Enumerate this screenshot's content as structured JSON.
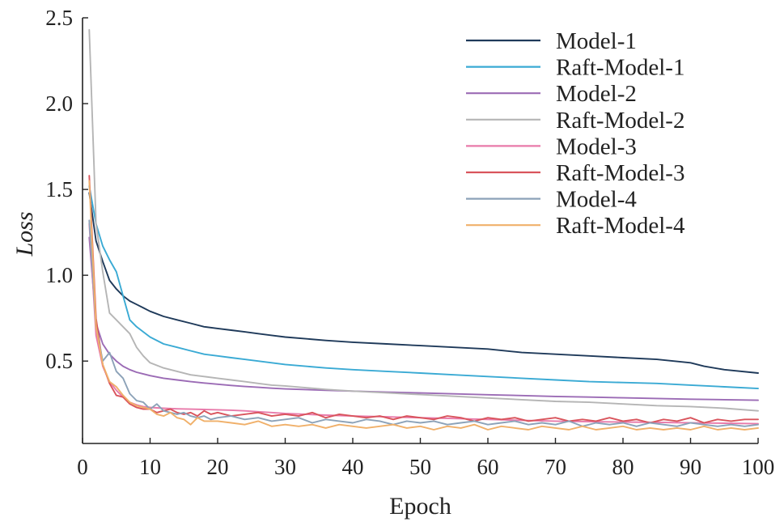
{
  "chart_data": {
    "type": "line",
    "title": "",
    "xlabel": "Epoch",
    "ylabel": "Loss",
    "xlim": [
      0,
      100
    ],
    "ylim": [
      0.02,
      2.5
    ],
    "x_ticks": [
      0,
      10,
      20,
      30,
      40,
      50,
      60,
      70,
      80,
      90,
      100
    ],
    "x_tick_labels": [
      "0",
      "10",
      "20",
      "30",
      "40",
      "50",
      "60",
      "70",
      "80",
      "90",
      "100"
    ],
    "y_ticks": [
      0.5,
      1.0,
      1.5,
      2.0,
      2.5
    ],
    "y_tick_labels": [
      "0.5",
      "1.0",
      "1.5",
      "2.0",
      "2.5"
    ],
    "grid": false,
    "legend_position": "top-right",
    "series": [
      {
        "name": "Model-1",
        "color": "#1f3a5a",
        "x": [
          1,
          2,
          3,
          4,
          5,
          6,
          7,
          8,
          9,
          10,
          12,
          14,
          16,
          18,
          20,
          22,
          24,
          26,
          28,
          30,
          33,
          36,
          40,
          45,
          50,
          55,
          60,
          65,
          70,
          75,
          80,
          85,
          90,
          92,
          95,
          100
        ],
        "y": [
          1.48,
          1.2,
          1.08,
          0.97,
          0.92,
          0.88,
          0.85,
          0.83,
          0.81,
          0.79,
          0.76,
          0.74,
          0.72,
          0.7,
          0.69,
          0.68,
          0.67,
          0.66,
          0.65,
          0.64,
          0.63,
          0.62,
          0.61,
          0.6,
          0.59,
          0.58,
          0.57,
          0.55,
          0.54,
          0.53,
          0.52,
          0.51,
          0.49,
          0.47,
          0.45,
          0.43
        ]
      },
      {
        "name": "Raft-Model-1",
        "color": "#3aaad4",
        "x": [
          1,
          2,
          3,
          4,
          5,
          6,
          7,
          8,
          9,
          10,
          12,
          14,
          16,
          18,
          20,
          22,
          24,
          26,
          28,
          30,
          33,
          36,
          40,
          45,
          50,
          55,
          60,
          65,
          70,
          75,
          80,
          85,
          90,
          95,
          100
        ],
        "y": [
          1.52,
          1.3,
          1.17,
          1.09,
          1.02,
          0.88,
          0.74,
          0.7,
          0.67,
          0.64,
          0.6,
          0.58,
          0.56,
          0.54,
          0.53,
          0.52,
          0.51,
          0.5,
          0.49,
          0.48,
          0.47,
          0.46,
          0.45,
          0.44,
          0.43,
          0.42,
          0.41,
          0.4,
          0.39,
          0.38,
          0.375,
          0.37,
          0.36,
          0.35,
          0.34
        ]
      },
      {
        "name": "Model-2",
        "color": "#9b6bb5",
        "x": [
          1,
          2,
          3,
          4,
          5,
          6,
          7,
          8,
          9,
          10,
          12,
          14,
          16,
          18,
          20,
          22,
          24,
          26,
          28,
          30,
          33,
          36,
          40,
          45,
          50,
          55,
          60,
          65,
          70,
          75,
          80,
          85,
          90,
          95,
          100
        ],
        "y": [
          1.22,
          0.72,
          0.6,
          0.54,
          0.5,
          0.47,
          0.45,
          0.435,
          0.425,
          0.415,
          0.4,
          0.39,
          0.38,
          0.372,
          0.365,
          0.358,
          0.352,
          0.347,
          0.342,
          0.338,
          0.334,
          0.33,
          0.325,
          0.319,
          0.314,
          0.309,
          0.304,
          0.299,
          0.294,
          0.29,
          0.286,
          0.282,
          0.278,
          0.275,
          0.272
        ]
      },
      {
        "name": "Raft-Model-2",
        "color": "#b5b5b5",
        "x": [
          1,
          2,
          3,
          4,
          5,
          6,
          7,
          8,
          9,
          10,
          12,
          14,
          16,
          18,
          20,
          22,
          24,
          26,
          28,
          30,
          33,
          36,
          40,
          45,
          50,
          55,
          60,
          65,
          70,
          75,
          80,
          85,
          90,
          95,
          100
        ],
        "y": [
          2.43,
          1.3,
          1.02,
          0.78,
          0.74,
          0.7,
          0.66,
          0.58,
          0.53,
          0.49,
          0.46,
          0.44,
          0.42,
          0.41,
          0.4,
          0.39,
          0.38,
          0.37,
          0.36,
          0.355,
          0.345,
          0.335,
          0.325,
          0.315,
          0.305,
          0.295,
          0.285,
          0.275,
          0.265,
          0.26,
          0.25,
          0.24,
          0.235,
          0.225,
          0.21
        ]
      },
      {
        "name": "Model-3",
        "color": "#e87aaa",
        "x": [
          1,
          2,
          3,
          4,
          5,
          6,
          7,
          8,
          9,
          10,
          12,
          14,
          16,
          18,
          20,
          22,
          24,
          26,
          28,
          30,
          33,
          36,
          40,
          45,
          50,
          55,
          60,
          65,
          70,
          75,
          80,
          85,
          90,
          95,
          100
        ],
        "y": [
          1.3,
          0.65,
          0.47,
          0.38,
          0.33,
          0.29,
          0.26,
          0.245,
          0.235,
          0.23,
          0.225,
          0.222,
          0.22,
          0.218,
          0.216,
          0.214,
          0.21,
          0.205,
          0.2,
          0.195,
          0.19,
          0.185,
          0.18,
          0.175,
          0.17,
          0.165,
          0.16,
          0.155,
          0.15,
          0.147,
          0.145,
          0.143,
          0.14,
          0.138,
          0.135
        ]
      },
      {
        "name": "Raft-Model-3",
        "color": "#d9545c",
        "x": [
          1,
          2,
          3,
          4,
          5,
          6,
          7,
          8,
          9,
          10,
          11,
          12,
          13,
          14,
          15,
          16,
          17,
          18,
          19,
          20,
          22,
          24,
          26,
          28,
          30,
          32,
          34,
          36,
          38,
          40,
          42,
          44,
          46,
          48,
          50,
          52,
          54,
          56,
          58,
          60,
          62,
          64,
          66,
          68,
          70,
          72,
          74,
          76,
          78,
          80,
          82,
          84,
          86,
          88,
          90,
          92,
          94,
          96,
          98,
          100
        ],
        "y": [
          1.58,
          0.75,
          0.48,
          0.37,
          0.3,
          0.29,
          0.25,
          0.23,
          0.22,
          0.22,
          0.2,
          0.21,
          0.22,
          0.2,
          0.19,
          0.2,
          0.18,
          0.21,
          0.19,
          0.2,
          0.18,
          0.19,
          0.2,
          0.18,
          0.19,
          0.18,
          0.2,
          0.17,
          0.19,
          0.18,
          0.17,
          0.18,
          0.16,
          0.18,
          0.17,
          0.16,
          0.18,
          0.17,
          0.15,
          0.17,
          0.16,
          0.17,
          0.15,
          0.16,
          0.17,
          0.15,
          0.16,
          0.15,
          0.17,
          0.15,
          0.16,
          0.14,
          0.16,
          0.15,
          0.17,
          0.14,
          0.16,
          0.15,
          0.16,
          0.16
        ]
      },
      {
        "name": "Model-4",
        "color": "#8ca2b8",
        "x": [
          1,
          2,
          3,
          4,
          5,
          6,
          7,
          8,
          9,
          10,
          11,
          12,
          13,
          14,
          15,
          16,
          17,
          18,
          19,
          20,
          22,
          24,
          26,
          28,
          30,
          32,
          34,
          36,
          38,
          40,
          42,
          44,
          46,
          48,
          50,
          52,
          54,
          56,
          58,
          60,
          62,
          64,
          66,
          68,
          70,
          72,
          74,
          76,
          78,
          80,
          82,
          84,
          86,
          88,
          90,
          92,
          94,
          96,
          98,
          100
        ],
        "y": [
          1.32,
          0.7,
          0.5,
          0.55,
          0.44,
          0.4,
          0.31,
          0.27,
          0.26,
          0.22,
          0.25,
          0.21,
          0.2,
          0.19,
          0.2,
          0.18,
          0.17,
          0.18,
          0.16,
          0.17,
          0.18,
          0.16,
          0.17,
          0.15,
          0.16,
          0.17,
          0.14,
          0.16,
          0.15,
          0.14,
          0.16,
          0.15,
          0.13,
          0.15,
          0.14,
          0.15,
          0.13,
          0.14,
          0.15,
          0.13,
          0.14,
          0.15,
          0.13,
          0.14,
          0.13,
          0.15,
          0.12,
          0.14,
          0.13,
          0.14,
          0.12,
          0.14,
          0.13,
          0.12,
          0.14,
          0.13,
          0.12,
          0.13,
          0.12,
          0.13
        ]
      },
      {
        "name": "Raft-Model-4",
        "color": "#f0b06a",
        "x": [
          1,
          2,
          3,
          4,
          5,
          6,
          7,
          8,
          9,
          10,
          11,
          12,
          13,
          14,
          15,
          16,
          17,
          18,
          19,
          20,
          22,
          24,
          26,
          28,
          30,
          32,
          34,
          36,
          38,
          40,
          42,
          44,
          46,
          48,
          50,
          52,
          54,
          56,
          58,
          60,
          62,
          64,
          66,
          68,
          70,
          72,
          74,
          76,
          78,
          80,
          82,
          84,
          86,
          88,
          90,
          92,
          94,
          96,
          98,
          100
        ],
        "y": [
          1.55,
          0.7,
          0.48,
          0.38,
          0.35,
          0.3,
          0.26,
          0.24,
          0.23,
          0.22,
          0.19,
          0.18,
          0.2,
          0.17,
          0.16,
          0.13,
          0.17,
          0.15,
          0.15,
          0.15,
          0.14,
          0.13,
          0.15,
          0.12,
          0.13,
          0.12,
          0.13,
          0.11,
          0.13,
          0.12,
          0.11,
          0.12,
          0.13,
          0.11,
          0.12,
          0.1,
          0.12,
          0.11,
          0.13,
          0.1,
          0.12,
          0.11,
          0.1,
          0.12,
          0.11,
          0.1,
          0.12,
          0.1,
          0.11,
          0.12,
          0.1,
          0.11,
          0.1,
          0.11,
          0.1,
          0.12,
          0.1,
          0.11,
          0.1,
          0.11
        ]
      }
    ]
  }
}
